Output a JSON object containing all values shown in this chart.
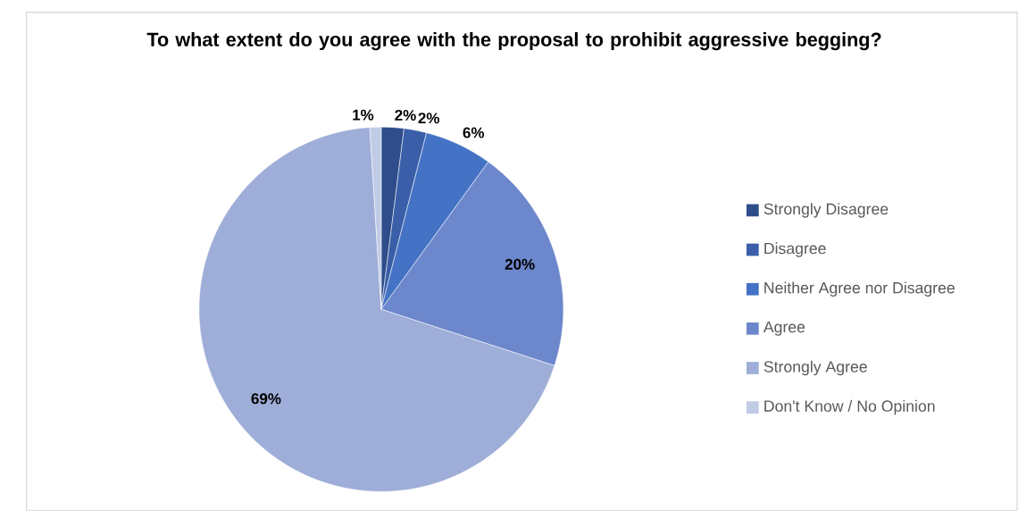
{
  "chart_data": {
    "type": "pie",
    "title": "To what extent do you agree with the proposal to prohibit aggressive begging?",
    "categories": [
      "Strongly Disagree",
      "Disagree",
      "Neither Agree nor Disagree",
      "Agree",
      "Strongly Agree",
      "Don't Know / No Opinion"
    ],
    "values": [
      2,
      2,
      6,
      20,
      69,
      1
    ],
    "colors": [
      "#2e4d8a",
      "#3a5ea8",
      "#4472c4",
      "#6d87cc",
      "#9eaed8",
      "#c0cbe6"
    ],
    "value_labels": [
      "2%",
      "2%",
      "6%",
      "20%",
      "69%",
      "1%"
    ],
    "legend": "right"
  }
}
